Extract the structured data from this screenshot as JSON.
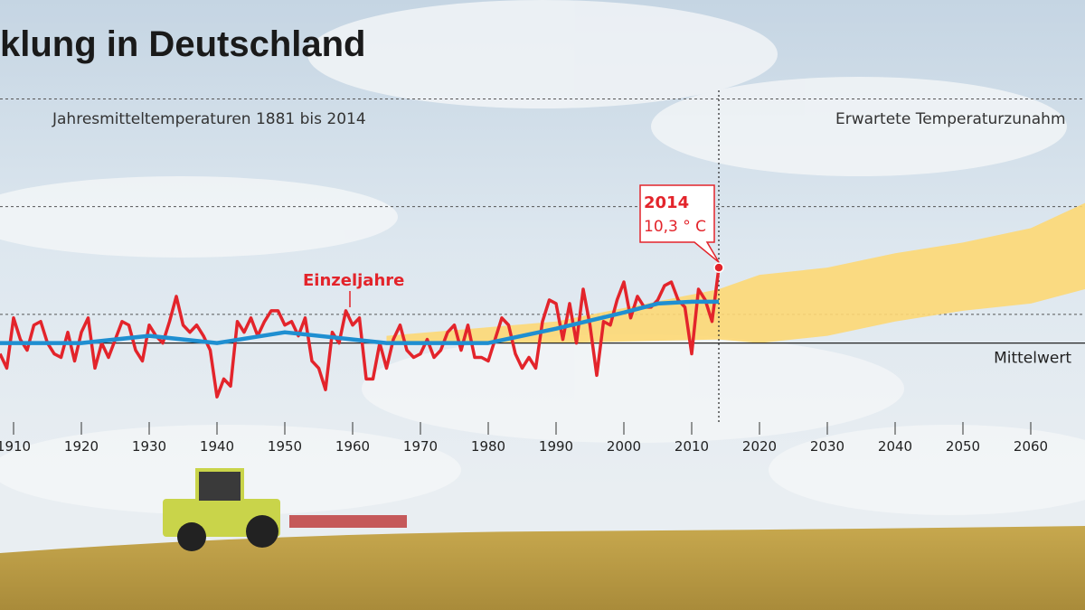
{
  "chart_data": {
    "type": "line",
    "title": "klung in Deutschland",
    "subtitle": "Jahresmitteltemperaturen 1881 bis 2014",
    "projection_label": "Erwartete Temperaturzunahm",
    "series_label": "Einzeljahre",
    "highlight": {
      "year": "2014",
      "label": "10,3 ° C",
      "x": 2014,
      "value": 10.3
    },
    "reference_line": {
      "value": 8.2,
      "label": "Mittelwert"
    },
    "divider_x": 2014,
    "xlim": [
      1908,
      2068
    ],
    "ylim": [
      6,
      17
    ],
    "xticks": [
      1910,
      1920,
      1930,
      1940,
      1950,
      1960,
      1970,
      1980,
      1990,
      2000,
      2010,
      2020,
      2030,
      2040,
      2050,
      2060
    ],
    "ygrid": [
      9,
      12,
      15
    ],
    "x": [
      1908,
      1909,
      1910,
      1911,
      1912,
      1913,
      1914,
      1915,
      1916,
      1917,
      1918,
      1919,
      1920,
      1921,
      1922,
      1923,
      1924,
      1925,
      1926,
      1927,
      1928,
      1929,
      1930,
      1931,
      1932,
      1933,
      1934,
      1935,
      1936,
      1937,
      1938,
      1939,
      1940,
      1941,
      1942,
      1943,
      1944,
      1945,
      1946,
      1947,
      1948,
      1949,
      1950,
      1951,
      1952,
      1953,
      1954,
      1955,
      1956,
      1957,
      1958,
      1959,
      1960,
      1961,
      1962,
      1963,
      1964,
      1965,
      1966,
      1967,
      1968,
      1969,
      1970,
      1971,
      1972,
      1973,
      1974,
      1975,
      1976,
      1977,
      1978,
      1979,
      1980,
      1981,
      1982,
      1983,
      1984,
      1985,
      1986,
      1987,
      1988,
      1989,
      1990,
      1991,
      1992,
      1993,
      1994,
      1995,
      1996,
      1997,
      1998,
      1999,
      2000,
      2001,
      2002,
      2003,
      2004,
      2005,
      2006,
      2007,
      2008,
      2009,
      2010,
      2011,
      2012,
      2013,
      2014
    ],
    "series": [
      {
        "color": "#e3242b",
        "values": [
          7.9,
          7.5,
          8.9,
          8.3,
          8.0,
          8.7,
          8.8,
          8.2,
          7.9,
          7.8,
          8.5,
          7.7,
          8.5,
          8.9,
          7.5,
          8.2,
          7.8,
          8.3,
          8.8,
          8.7,
          8.0,
          7.7,
          8.7,
          8.4,
          8.2,
          8.8,
          9.5,
          8.7,
          8.5,
          8.7,
          8.4,
          8.0,
          6.7,
          7.2,
          7.0,
          8.8,
          8.5,
          8.9,
          8.4,
          8.8,
          9.1,
          9.1,
          8.7,
          8.8,
          8.4,
          8.9,
          7.7,
          7.5,
          6.9,
          8.5,
          8.2,
          9.1,
          8.7,
          8.9,
          7.2,
          7.2,
          8.2,
          7.5,
          8.3,
          8.7,
          8.0,
          7.8,
          7.9,
          8.3,
          7.8,
          8.0,
          8.5,
          8.7,
          8.0,
          8.7,
          7.8,
          7.8,
          7.7,
          8.3,
          8.9,
          8.7,
          7.9,
          7.5,
          7.8,
          7.5,
          8.8,
          9.4,
          9.3,
          8.3,
          9.3,
          8.2,
          9.7,
          8.7,
          7.3,
          8.8,
          8.7,
          9.4,
          9.9,
          8.9,
          9.5,
          9.2,
          9.2,
          9.4,
          9.8,
          9.9,
          9.4,
          9.2,
          7.9,
          9.7,
          9.4,
          8.8,
          10.3
        ]
      },
      {
        "color": "#1f8fd1",
        "x": [
          1908,
          1920,
          1930,
          1940,
          1950,
          1960,
          1965,
          1970,
          1980,
          1990,
          2000,
          2005,
          2010,
          2014
        ],
        "values": [
          8.2,
          8.2,
          8.4,
          8.2,
          8.5,
          8.3,
          8.2,
          8.2,
          8.2,
          8.6,
          9.05,
          9.3,
          9.35,
          9.35
        ]
      }
    ],
    "band": {
      "color": "#fdd874",
      "x": [
        1965,
        1990,
        2014,
        2020,
        2030,
        2040,
        2050,
        2060,
        2068
      ],
      "lower": [
        8.2,
        8.2,
        8.3,
        8.2,
        8.4,
        8.8,
        9.1,
        9.3,
        9.7
      ],
      "upper": [
        8.4,
        8.8,
        9.7,
        10.1,
        10.3,
        10.7,
        11.0,
        11.4,
        12.1
      ]
    }
  }
}
